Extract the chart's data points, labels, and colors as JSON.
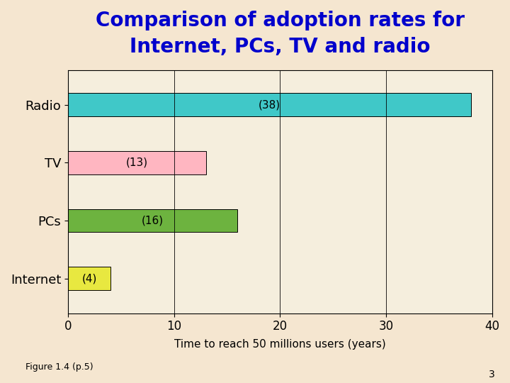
{
  "title": "Comparison of adoption rates for\nInternet, PCs, TV and radio",
  "categories": [
    "Radio",
    "TV",
    "PCs",
    "Internet"
  ],
  "values": [
    38,
    13,
    16,
    4
  ],
  "labels": [
    "(38)",
    "(13)",
    "(16)",
    "(4)"
  ],
  "bar_colors": [
    "#40c8c8",
    "#ffb6c1",
    "#6db33f",
    "#e8e840"
  ],
  "xlabel": "Time to reach 50 millions users (years)",
  "xlim": [
    0,
    40
  ],
  "xticks": [
    0,
    10,
    20,
    30,
    40
  ],
  "title_color": "#0000cc",
  "title_fontsize": 20,
  "background_color": "#f5e6d0",
  "plot_bg_color": "#f5eedd",
  "figure_note": "Figure 1.4 (p.5)",
  "page_number": "3",
  "bar_height": 0.4,
  "ytick_fontsize": 13,
  "xtick_fontsize": 12,
  "xlabel_fontsize": 11,
  "label_fontsize": 11
}
